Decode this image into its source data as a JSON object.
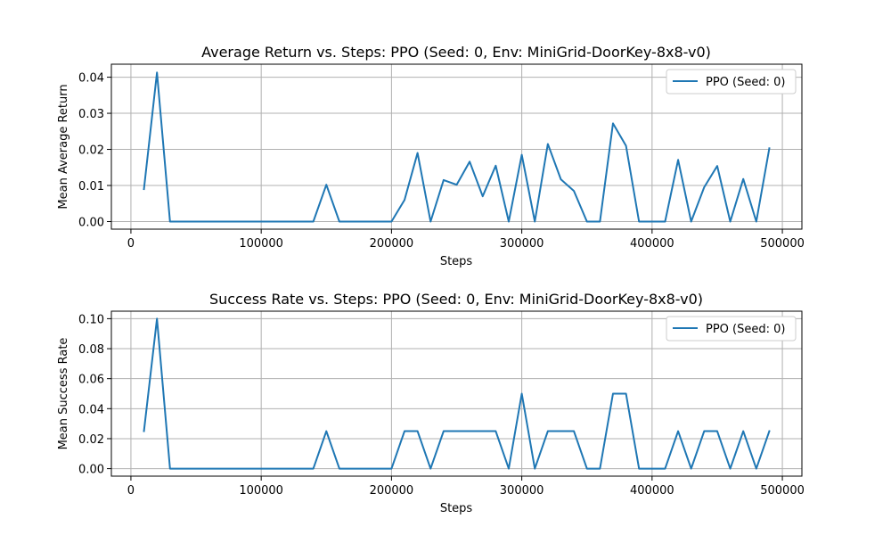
{
  "chart_data": [
    {
      "type": "line",
      "title": "Average Return vs. Steps: PPO (Seed: 0, Env: MiniGrid-DoorKey-8x8-v0)",
      "xlabel": "Steps",
      "ylabel": "Mean Average Return",
      "xlim": [
        -15000,
        515000
      ],
      "ylim": [
        -0.0021,
        0.0436
      ],
      "xticks": [
        0,
        100000,
        200000,
        300000,
        400000,
        500000
      ],
      "xtick_labels": [
        "0",
        "100000",
        "200000",
        "300000",
        "400000",
        "500000"
      ],
      "yticks": [
        0.0,
        0.01,
        0.02,
        0.03,
        0.04
      ],
      "ytick_labels": [
        "0.00",
        "0.01",
        "0.02",
        "0.03",
        "0.04"
      ],
      "grid": true,
      "legend_position": "upper right",
      "series": [
        {
          "name": "PPO (Seed: 0)",
          "color": "#1f77b4",
          "x": [
            10000,
            20000,
            30000,
            40000,
            50000,
            60000,
            70000,
            80000,
            90000,
            100000,
            110000,
            120000,
            130000,
            140000,
            150000,
            160000,
            170000,
            180000,
            190000,
            200000,
            210000,
            220000,
            230000,
            240000,
            250000,
            260000,
            270000,
            280000,
            290000,
            300000,
            310000,
            320000,
            330000,
            340000,
            350000,
            360000,
            370000,
            380000,
            390000,
            400000,
            410000,
            420000,
            430000,
            440000,
            450000,
            460000,
            470000,
            480000,
            490000
          ],
          "y": [
            0.009,
            0.0413,
            0.0,
            0.0,
            0.0,
            0.0,
            0.0,
            0.0,
            0.0,
            0.0,
            0.0,
            0.0,
            0.0,
            0.0,
            0.0102,
            0.0,
            0.0,
            0.0,
            0.0,
            0.0,
            0.006,
            0.019,
            0.0,
            0.0115,
            0.0102,
            0.0166,
            0.007,
            0.0155,
            0.0,
            0.0185,
            0.0,
            0.0215,
            0.0117,
            0.0085,
            0.0,
            0.0,
            0.0272,
            0.021,
            0.0,
            0.0,
            0.0,
            0.0171,
            0.0,
            0.0095,
            0.0154,
            0.0,
            0.0118,
            0.0,
            0.0203
          ]
        }
      ]
    },
    {
      "type": "line",
      "title": "Success Rate vs. Steps: PPO (Seed: 0, Env: MiniGrid-DoorKey-8x8-v0)",
      "xlabel": "Steps",
      "ylabel": "Mean Success Rate",
      "xlim": [
        -15000,
        515000
      ],
      "ylim": [
        -0.005,
        0.105
      ],
      "xticks": [
        0,
        100000,
        200000,
        300000,
        400000,
        500000
      ],
      "xtick_labels": [
        "0",
        "100000",
        "200000",
        "300000",
        "400000",
        "500000"
      ],
      "yticks": [
        0.0,
        0.02,
        0.04,
        0.06,
        0.08,
        0.1
      ],
      "ytick_labels": [
        "0.00",
        "0.02",
        "0.04",
        "0.06",
        "0.08",
        "0.10"
      ],
      "grid": true,
      "legend_position": "upper right",
      "series": [
        {
          "name": "PPO (Seed: 0)",
          "color": "#1f77b4",
          "x": [
            10000,
            20000,
            30000,
            40000,
            50000,
            60000,
            70000,
            80000,
            90000,
            100000,
            110000,
            120000,
            130000,
            140000,
            150000,
            160000,
            170000,
            180000,
            190000,
            200000,
            210000,
            220000,
            230000,
            240000,
            250000,
            260000,
            270000,
            280000,
            290000,
            300000,
            310000,
            320000,
            330000,
            340000,
            350000,
            360000,
            370000,
            380000,
            390000,
            400000,
            410000,
            420000,
            430000,
            440000,
            450000,
            460000,
            470000,
            480000,
            490000
          ],
          "y": [
            0.025,
            0.1,
            0.0,
            0.0,
            0.0,
            0.0,
            0.0,
            0.0,
            0.0,
            0.0,
            0.0,
            0.0,
            0.0,
            0.0,
            0.025,
            0.0,
            0.0,
            0.0,
            0.0,
            0.0,
            0.025,
            0.025,
            0.0,
            0.025,
            0.025,
            0.025,
            0.025,
            0.025,
            0.0,
            0.05,
            0.0,
            0.025,
            0.025,
            0.025,
            0.0,
            0.0,
            0.05,
            0.05,
            0.0,
            0.0,
            0.0,
            0.025,
            0.0,
            0.025,
            0.025,
            0.0,
            0.025,
            0.0,
            0.025
          ]
        }
      ]
    }
  ]
}
